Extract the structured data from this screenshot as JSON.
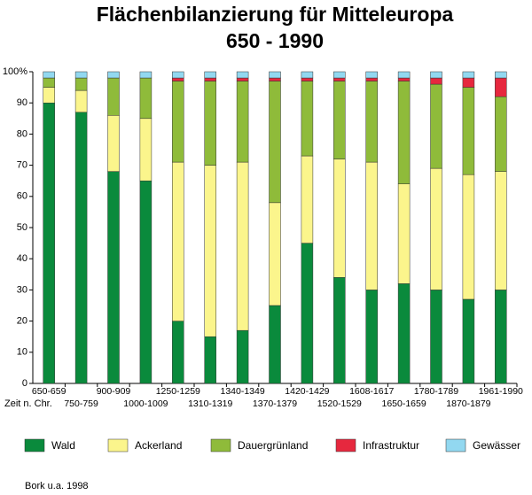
{
  "chart_data": {
    "type": "stacked_bar",
    "title": "Flächenbilanzierung für Mitteleuropa",
    "subtitle": "650 - 1990",
    "x_label": "Zeit n. Chr.",
    "source": "Bork u.a. 1998",
    "categories": [
      "650-659",
      "750-759",
      "900-909",
      "1000-1009",
      "1250-1259",
      "1310-1319",
      "1340-1349",
      "1370-1379",
      "1420-1429",
      "1520-1529",
      "1608-1617",
      "1650-1659",
      "1780-1789",
      "1870-1879",
      "1961-1990"
    ],
    "series": [
      {
        "name": "Wald",
        "color": "#0a8a3c",
        "values": [
          90,
          87,
          68,
          65,
          20,
          15,
          17,
          25,
          45,
          34,
          30,
          32,
          30,
          27,
          30
        ]
      },
      {
        "name": "Ackerland",
        "color": "#fbf58c",
        "values": [
          5,
          7,
          18,
          20,
          51,
          55,
          54,
          33,
          28,
          38,
          41,
          32,
          39,
          40,
          38
        ]
      },
      {
        "name": "Dauergrünland",
        "color": "#8fbb3a",
        "values": [
          3,
          4,
          12,
          13,
          26,
          27,
          26,
          39,
          24,
          25,
          26,
          33,
          27,
          28,
          24
        ]
      },
      {
        "name": "Infrastruktur",
        "color": "#e6283e",
        "values": [
          0,
          0,
          0,
          0,
          1,
          1,
          1,
          1,
          1,
          1,
          1,
          1,
          2,
          3,
          6
        ]
      },
      {
        "name": "Gewässer",
        "color": "#92d8f0",
        "values": [
          2,
          2,
          2,
          2,
          2,
          2,
          2,
          2,
          2,
          2,
          2,
          2,
          2,
          2,
          2
        ]
      }
    ],
    "ylim": [
      0,
      100
    ],
    "yticks": [
      0,
      10,
      20,
      30,
      40,
      50,
      60,
      70,
      80,
      90,
      {
        "value": 100,
        "label": "100%"
      }
    ]
  }
}
